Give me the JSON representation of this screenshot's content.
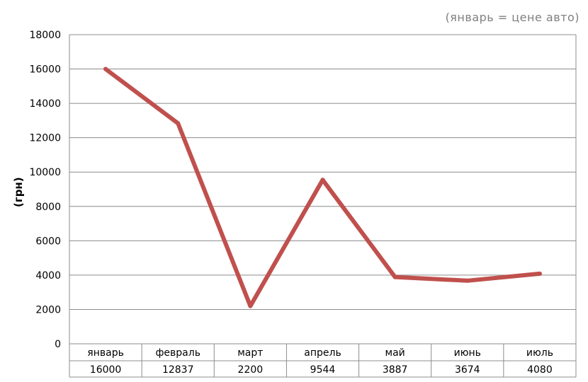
{
  "chart_data": {
    "type": "line",
    "subtitle": "(январь = цене авто)",
    "xlabel": "",
    "ylabel": "(грн)",
    "categories": [
      "январь",
      "февраль",
      "март",
      "апрель",
      "май",
      "июнь",
      "июль"
    ],
    "series": [
      {
        "values": [
          16000,
          12837,
          2200,
          9544,
          3887,
          3674,
          4080
        ]
      }
    ],
    "table_values": [
      "16000",
      "12837",
      "2200",
      "9544",
      "3887",
      "3674",
      "4080"
    ],
    "yticks": [
      "0",
      "2000",
      "4000",
      "6000",
      "8000",
      "10000",
      "12000",
      "14000",
      "16000",
      "18000"
    ],
    "ylim": [
      0,
      18000
    ],
    "grid": true,
    "legend": "none",
    "data_table": true,
    "colors": {
      "line": "#c0504d",
      "grid": "#8c8c8c",
      "text": "#000000",
      "subtitle": "#7f7f7f"
    }
  }
}
